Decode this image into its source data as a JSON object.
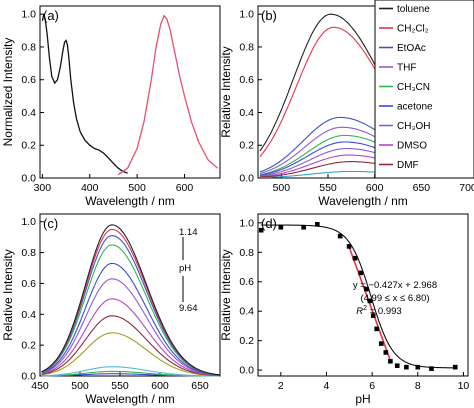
{
  "chart_data": [
    {
      "panel": "(a)",
      "type": "line",
      "xlabel": "Wavelength / nm",
      "ylabel": "Normalized Intensity",
      "xlim": [
        295,
        675
      ],
      "ylim": [
        0,
        1.05
      ],
      "xticks": [
        300,
        400,
        500,
        600
      ],
      "yticks": [
        0.0,
        0.2,
        0.4,
        0.6,
        0.8,
        1.0
      ],
      "series": [
        {
          "role": "absorption",
          "color": "#111111",
          "x": [
            300,
            303,
            306,
            310,
            315,
            320,
            326,
            332,
            338,
            343,
            347,
            350,
            353,
            356,
            360,
            366,
            372,
            380,
            390,
            400,
            410,
            420,
            430,
            440,
            450,
            460,
            470,
            480
          ],
          "y": [
            0.96,
            1.0,
            0.97,
            0.88,
            0.73,
            0.62,
            0.58,
            0.6,
            0.68,
            0.77,
            0.83,
            0.84,
            0.81,
            0.73,
            0.6,
            0.46,
            0.36,
            0.28,
            0.23,
            0.2,
            0.18,
            0.17,
            0.15,
            0.12,
            0.09,
            0.06,
            0.04,
            0.03
          ]
        },
        {
          "role": "emission",
          "color": "#e8506e",
          "x": [
            460,
            480,
            500,
            515,
            530,
            540,
            550,
            557,
            563,
            570,
            580,
            590,
            600,
            615,
            630,
            650,
            670
          ],
          "y": [
            0.02,
            0.06,
            0.18,
            0.35,
            0.6,
            0.8,
            0.94,
            0.99,
            0.97,
            0.9,
            0.76,
            0.62,
            0.5,
            0.34,
            0.22,
            0.11,
            0.06
          ]
        }
      ]
    },
    {
      "panel": "(b)",
      "type": "line",
      "xlabel": "Wavelength / nm",
      "ylabel": "Relative Intensity",
      "xlim": [
        475,
        700
      ],
      "ylim": [
        0,
        1.05
      ],
      "xticks": [
        500,
        550,
        600,
        650,
        700
      ],
      "yticks": [
        0.0,
        0.2,
        0.4,
        0.6,
        0.8,
        1.0
      ],
      "legend_position": "right",
      "series": [
        {
          "name": "toluene",
          "color": "#222222",
          "peak": 1.0,
          "center": 553
        },
        {
          "name": "CH₂Cl₂",
          "color": "#e8334a",
          "peak": 0.92,
          "center": 556
        },
        {
          "name": "EtOAc",
          "color": "#3a55c8",
          "peak": 0.37,
          "center": 563
        },
        {
          "name": "THF",
          "color": "#8e5bd6",
          "peak": 0.31,
          "center": 565
        },
        {
          "name": "CH₃CN",
          "color": "#2fb84a",
          "peak": 0.26,
          "center": 568
        },
        {
          "name": "acetone",
          "color": "#3b4bd6",
          "peak": 0.22,
          "center": 568
        },
        {
          "name": "CH₃OH",
          "color": "#8a5ec9",
          "peak": 0.18,
          "center": 570
        },
        {
          "name": "DMSO",
          "color": "#b845c8",
          "peak": 0.14,
          "center": 572
        },
        {
          "name": "DMF",
          "color": "#8b2a3e",
          "peak": 0.1,
          "center": 574
        }
      ],
      "extra_series": [
        {
          "color": "#32a7c9",
          "peak": 0.04,
          "center": 575
        }
      ]
    },
    {
      "panel": "(c)",
      "type": "line",
      "xlabel": "Wavelength / nm",
      "ylabel": "Relative Intensity",
      "xlim": [
        450,
        675
      ],
      "ylim": [
        0,
        1.05
      ],
      "xticks": [
        450,
        500,
        550,
        600,
        650
      ],
      "yticks": [
        0.0,
        0.2,
        0.4,
        0.6,
        0.8,
        1.0
      ],
      "annotation": {
        "top": "1.14",
        "mid": "pH",
        "bottom": "9.64"
      },
      "series": [
        {
          "color": "#222222",
          "peak": 0.98,
          "center": 540
        },
        {
          "color": "#e8334a",
          "peak": 0.95,
          "center": 540
        },
        {
          "color": "#3a55c8",
          "peak": 0.91,
          "center": 540
        },
        {
          "color": "#2fb84a",
          "peak": 0.85,
          "center": 540
        },
        {
          "color": "#3b4bd6",
          "peak": 0.73,
          "center": 540
        },
        {
          "color": "#8e5bd6",
          "peak": 0.63,
          "center": 540
        },
        {
          "color": "#b845c8",
          "peak": 0.5,
          "center": 540
        },
        {
          "color": "#8b2a3e",
          "peak": 0.39,
          "center": 540
        },
        {
          "color": "#9aa31c",
          "peak": 0.28,
          "center": 540
        },
        {
          "color": "#5bb7d8",
          "peak": 0.06,
          "center": 540
        },
        {
          "color": "#2fb84a",
          "peak": 0.03,
          "center": 540
        },
        {
          "color": "#3b4bd6",
          "peak": 0.015,
          "center": 540
        }
      ]
    },
    {
      "panel": "(d)",
      "type": "scatter",
      "xlabel": "pH",
      "ylabel": "Relative Intensity",
      "xlim": [
        1,
        10.2
      ],
      "ylim": [
        -0.04,
        1.06
      ],
      "xticks": [
        2,
        4,
        6,
        8,
        10
      ],
      "yticks": [
        0.0,
        0.2,
        0.4,
        0.6,
        0.8,
        1.0
      ],
      "points": {
        "x": [
          1.14,
          2.0,
          3.0,
          3.6,
          4.6,
          4.99,
          5.25,
          5.5,
          5.75,
          5.9,
          6.05,
          6.2,
          6.4,
          6.6,
          6.8,
          7.1,
          7.5,
          8.0,
          8.6,
          9.64
        ],
        "y": [
          0.95,
          0.97,
          0.97,
          0.99,
          0.91,
          0.84,
          0.76,
          0.66,
          0.55,
          0.47,
          0.37,
          0.28,
          0.18,
          0.12,
          0.06,
          0.03,
          0.02,
          0.02,
          0.01,
          0.02
        ]
      },
      "fit": {
        "color": "#e8334a",
        "slope": -0.427,
        "intercept": 2.968,
        "x_range": [
          4.99,
          6.8
        ]
      },
      "sigmoid_color": "#111111",
      "annotation": {
        "line1": "y = −0.427x + 2.968",
        "line2": "(4.99 ≤ x ≤ 6.80)",
        "line3_label": "R",
        "line3_value": " = 0.993"
      }
    }
  ],
  "panel_labels": [
    "(a)",
    "(b)",
    "(c)",
    "(d)"
  ]
}
